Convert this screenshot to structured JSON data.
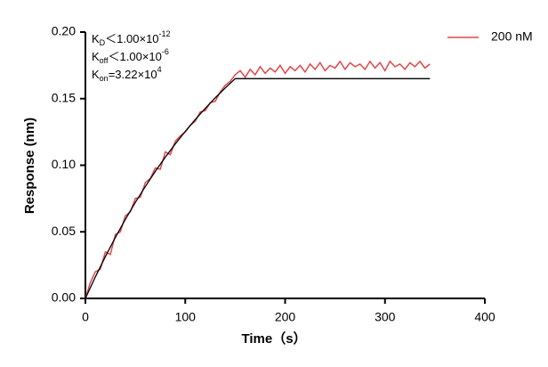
{
  "chart_data": {
    "type": "line",
    "xlabel": "Time（s）",
    "ylabel": "Response (nm)",
    "annotations": [
      {
        "symbol": "K",
        "sub": "D",
        "text": "＜1.00×10",
        "sup": "-12"
      },
      {
        "symbol": "K",
        "sub": "off",
        "text": "＜1.00×10",
        "sup": "-6"
      },
      {
        "symbol": "K",
        "sub": "on",
        "text": "=3.22×10",
        "sup": "4"
      }
    ],
    "xlim": [
      0,
      400
    ],
    "xticks": [
      0,
      100,
      200,
      300,
      400
    ],
    "ylim": [
      0,
      0.2
    ],
    "yticks": [
      {
        "value": 0,
        "label": "0.00"
      },
      {
        "value": 0.05,
        "label": "0.05"
      },
      {
        "value": 0.1,
        "label": "0.10"
      },
      {
        "value": 0.15,
        "label": "0.15"
      },
      {
        "value": 0.2,
        "label": "0.20"
      }
    ],
    "legend": "upper right",
    "series": [
      {
        "name": "200 nM",
        "color": "#e0474c",
        "x": [
          0,
          5,
          10,
          15,
          20,
          25,
          30,
          35,
          40,
          45,
          50,
          55,
          60,
          65,
          70,
          75,
          80,
          85,
          90,
          95,
          100,
          105,
          110,
          115,
          120,
          125,
          130,
          135,
          140,
          145,
          150,
          155,
          160,
          165,
          170,
          175,
          180,
          185,
          190,
          195,
          200,
          205,
          210,
          215,
          220,
          225,
          230,
          235,
          240,
          245,
          250,
          255,
          260,
          265,
          270,
          275,
          280,
          285,
          290,
          295,
          300,
          305,
          310,
          315,
          320,
          325,
          330,
          335,
          340,
          345
        ],
        "values": [
          0.0,
          0.012,
          0.02,
          0.022,
          0.035,
          0.033,
          0.048,
          0.05,
          0.062,
          0.065,
          0.075,
          0.076,
          0.087,
          0.09,
          0.098,
          0.097,
          0.11,
          0.108,
          0.118,
          0.122,
          0.125,
          0.13,
          0.133,
          0.14,
          0.141,
          0.147,
          0.148,
          0.155,
          0.16,
          0.163,
          0.168,
          0.171,
          0.166,
          0.172,
          0.168,
          0.174,
          0.169,
          0.173,
          0.17,
          0.175,
          0.169,
          0.174,
          0.171,
          0.175,
          0.17,
          0.176,
          0.172,
          0.177,
          0.171,
          0.175,
          0.173,
          0.178,
          0.172,
          0.177,
          0.174,
          0.176,
          0.172,
          0.178,
          0.173,
          0.177,
          0.171,
          0.178,
          0.174,
          0.176,
          0.172,
          0.177,
          0.174,
          0.178,
          0.173,
          0.176
        ]
      },
      {
        "color": "#000000",
        "x": [
          0,
          10,
          20,
          30,
          40,
          50,
          60,
          70,
          80,
          90,
          100,
          110,
          120,
          130,
          140,
          150,
          345
        ],
        "values": [
          0,
          0.0162,
          0.0314,
          0.0458,
          0.0593,
          0.0721,
          0.084,
          0.0954,
          0.106,
          0.116,
          0.1254,
          0.1343,
          0.1427,
          0.1506,
          0.158,
          0.165,
          0.165
        ]
      }
    ]
  }
}
